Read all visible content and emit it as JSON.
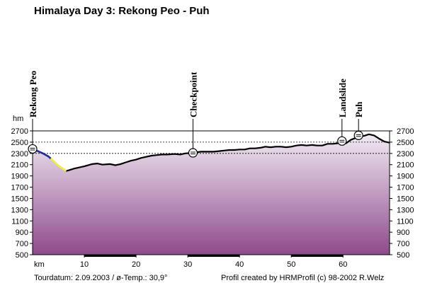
{
  "chart_data": {
    "type": "area",
    "title": "Himalaya Day 3: Rekong Peo - Puh",
    "ylabel": "hm",
    "xlabel": "km",
    "xlim": [
      0,
      69
    ],
    "ylim": [
      500,
      2700
    ],
    "x_ticks": [
      10,
      20,
      30,
      40,
      50,
      60
    ],
    "y_ticks": [
      500,
      700,
      900,
      1100,
      1300,
      1500,
      1700,
      1900,
      2100,
      2300,
      2500,
      2700
    ],
    "dashed_gridlines": [
      2700,
      2500,
      2300
    ],
    "colors": {
      "profile_line": "#000000",
      "segment_start": "#1e2e9e",
      "segment_yellow": "#f0f040",
      "fill_top": "#f0eaf2",
      "fill_bottom": "#8e4a8c"
    },
    "series": [
      {
        "points": [
          [
            0.0,
            2380
          ],
          [
            1.0,
            2340
          ],
          [
            2.0,
            2300
          ],
          [
            3.0,
            2250
          ],
          [
            4.0,
            2170
          ],
          [
            5.0,
            2080
          ],
          [
            6.5,
            1990
          ],
          [
            7.0,
            2000
          ],
          [
            8.0,
            2030
          ],
          [
            9.0,
            2050
          ],
          [
            10.0,
            2070
          ],
          [
            11.5,
            2110
          ],
          [
            12.5,
            2120
          ],
          [
            13.5,
            2100
          ],
          [
            15.0,
            2110
          ],
          [
            16.0,
            2090
          ],
          [
            17.0,
            2110
          ],
          [
            18.0,
            2140
          ],
          [
            19.0,
            2170
          ],
          [
            20.0,
            2190
          ],
          [
            21.0,
            2220
          ],
          [
            22.0,
            2240
          ],
          [
            23.0,
            2260
          ],
          [
            24.0,
            2270
          ],
          [
            25.0,
            2280
          ],
          [
            26.0,
            2280
          ],
          [
            27.5,
            2290
          ],
          [
            28.5,
            2280
          ],
          [
            29.5,
            2300
          ],
          [
            31.0,
            2310
          ],
          [
            32.5,
            2330
          ],
          [
            33.5,
            2330
          ],
          [
            35.0,
            2330
          ],
          [
            36.0,
            2340
          ],
          [
            37.0,
            2350
          ],
          [
            38.0,
            2360
          ],
          [
            39.0,
            2360
          ],
          [
            40.0,
            2370
          ],
          [
            41.0,
            2370
          ],
          [
            42.0,
            2390
          ],
          [
            43.0,
            2390
          ],
          [
            44.0,
            2400
          ],
          [
            45.0,
            2420
          ],
          [
            46.0,
            2410
          ],
          [
            47.0,
            2420
          ],
          [
            48.0,
            2420
          ],
          [
            49.0,
            2410
          ],
          [
            50.0,
            2420
          ],
          [
            51.0,
            2440
          ],
          [
            52.0,
            2450
          ],
          [
            53.0,
            2440
          ],
          [
            54.0,
            2450
          ],
          [
            55.0,
            2440
          ],
          [
            56.0,
            2440
          ],
          [
            57.0,
            2470
          ],
          [
            58.0,
            2470
          ],
          [
            59.0,
            2480
          ],
          [
            59.8,
            2520
          ],
          [
            60.6,
            2480
          ],
          [
            61.5,
            2540
          ],
          [
            62.3,
            2570
          ],
          [
            63.0,
            2620
          ],
          [
            64.0,
            2610
          ],
          [
            65.0,
            2640
          ],
          [
            66.0,
            2620
          ],
          [
            67.0,
            2560
          ],
          [
            68.0,
            2510
          ],
          [
            69.0,
            2490
          ]
        ]
      }
    ],
    "colored_segments": [
      {
        "from_km": 0.0,
        "to_km": 3.5,
        "color": "#1e2e9e"
      },
      {
        "from_km": 3.5,
        "to_km": 6.5,
        "color": "#f0f040"
      }
    ],
    "waypoints": [
      {
        "label": "Rekong Peo",
        "km": 0.0,
        "alt": 2380
      },
      {
        "label": "Checkpoint",
        "km": 31.0,
        "alt": 2310
      },
      {
        "label": "Landslide",
        "km": 59.8,
        "alt": 2520
      },
      {
        "label": "Puh",
        "km": 63.0,
        "alt": 2620
      }
    ],
    "x_axis_bands": [
      [
        10,
        20
      ],
      [
        30,
        40
      ],
      [
        50,
        60
      ]
    ]
  },
  "footer": {
    "date_text": "Tourdatum:  2.09.2003  /  ø-Temp.: 30,9°",
    "credit_text": "Profil created by HRMProfil (c) 98-2002 R.Welz"
  }
}
